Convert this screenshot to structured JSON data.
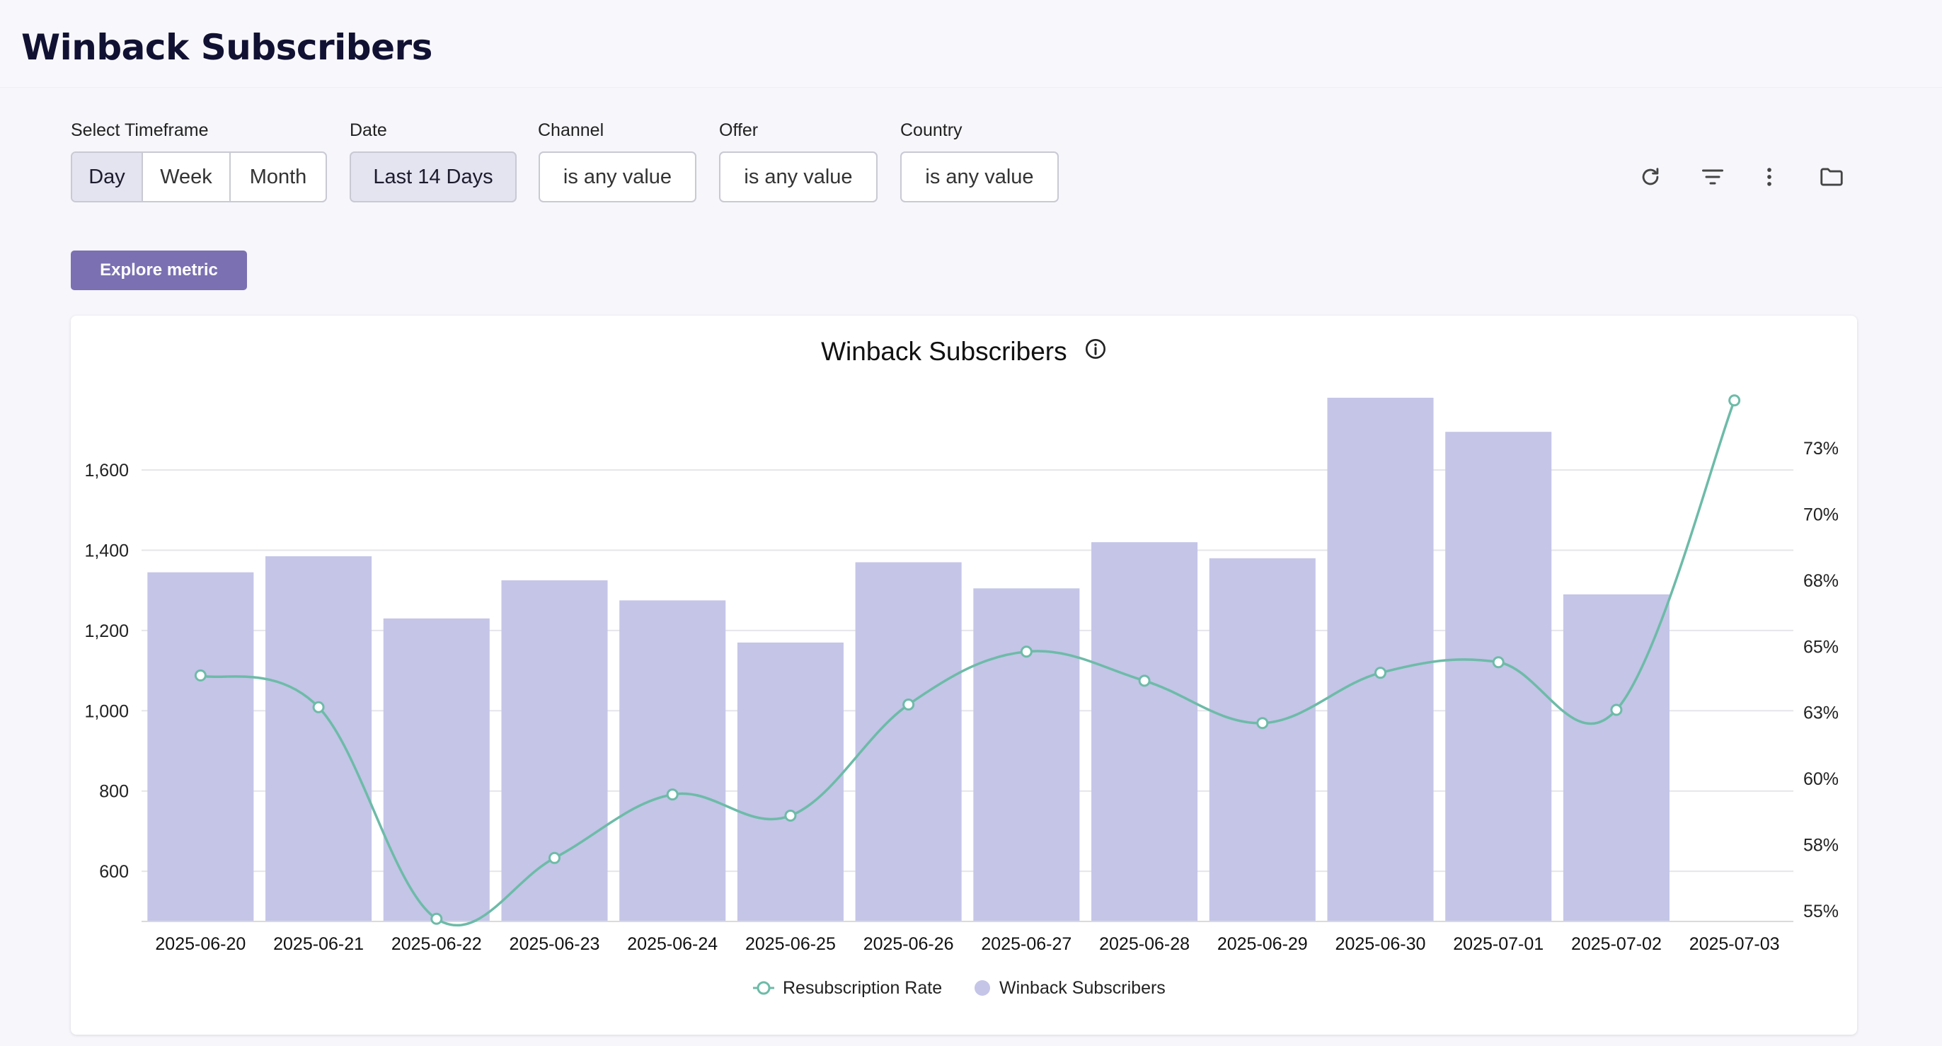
{
  "page": {
    "title": "Winback Subscribers"
  },
  "filters": {
    "timeframe": {
      "label": "Select Timeframe",
      "options": [
        "Day",
        "Week",
        "Month"
      ],
      "selected": "Day"
    },
    "date": {
      "label": "Date",
      "value": "Last 14 Days"
    },
    "channel": {
      "label": "Channel",
      "value": "is any value"
    },
    "offer": {
      "label": "Offer",
      "value": "is any value"
    },
    "country": {
      "label": "Country",
      "value": "is any value"
    }
  },
  "toolbar": {
    "icons": [
      "refresh-icon",
      "filter-icon",
      "more-vertical-icon",
      "folder-icon"
    ]
  },
  "explore_button": {
    "label": "Explore metric"
  },
  "colors": {
    "bar": "#c4c5e7",
    "line": "#6dbba8",
    "accent": "#7b70b2"
  },
  "chart_data": {
    "type": "bar",
    "title": "Winback Subscribers",
    "categories": [
      "2025-06-20",
      "2025-06-21",
      "2025-06-22",
      "2025-06-23",
      "2025-06-24",
      "2025-06-25",
      "2025-06-26",
      "2025-06-27",
      "2025-06-28",
      "2025-06-29",
      "2025-06-30",
      "2025-07-01",
      "2025-07-02",
      "2025-07-03"
    ],
    "series": [
      {
        "name": "Winback Subscribers",
        "type": "bar",
        "axis": "left",
        "values": [
          1345,
          1385,
          1230,
          1325,
          1275,
          1170,
          1370,
          1305,
          1420,
          1380,
          1780,
          1695,
          1290,
          null
        ]
      },
      {
        "name": "Resubscription Rate",
        "type": "line",
        "axis": "right",
        "values": [
          63.9,
          62.7,
          54.7,
          57.0,
          59.4,
          58.6,
          62.8,
          64.8,
          63.7,
          62.1,
          64.0,
          64.4,
          62.6,
          74.3
        ]
      }
    ],
    "y_left": {
      "ticks": [
        "600",
        "800",
        "1,000",
        "1,200",
        "1,400",
        "1,600"
      ],
      "tick_values": [
        600,
        800,
        1000,
        1200,
        1400,
        1600
      ],
      "range": [
        475,
        1780
      ]
    },
    "y_right": {
      "ticks": [
        "55%",
        "58%",
        "60%",
        "63%",
        "65%",
        "68%",
        "70%",
        "73%"
      ],
      "tick_values": [
        55,
        57.5,
        60,
        62.5,
        65,
        67.5,
        70,
        72.5
      ],
      "range": [
        54.6,
        74.4
      ]
    },
    "grid": true,
    "legend": {
      "position": "bottom",
      "items": [
        "Resubscription Rate",
        "Winback Subscribers"
      ]
    }
  }
}
